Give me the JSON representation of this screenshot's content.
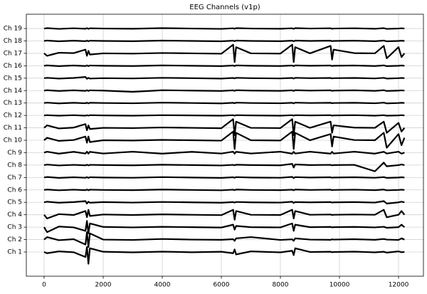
{
  "chart_data": {
    "type": "line",
    "title": "EEG Channels (v1p)",
    "color": "#000000",
    "grid": true,
    "xlim": [
      -602,
      12843
    ],
    "ylim": [
      -0.95,
      20.15
    ],
    "xticks": [
      0,
      2000,
      4000,
      6000,
      8000,
      10000,
      12000
    ],
    "yticks": [
      {
        "value": 1,
        "label": "Ch 1"
      },
      {
        "value": 2,
        "label": "Ch 2"
      },
      {
        "value": 3,
        "label": "Ch 3"
      },
      {
        "value": 4,
        "label": "Ch 4"
      },
      {
        "value": 5,
        "label": "Ch 5"
      },
      {
        "value": 6,
        "label": "Ch 6"
      },
      {
        "value": 7,
        "label": "Ch 7"
      },
      {
        "value": 8,
        "label": "Ch 8"
      },
      {
        "value": 9,
        "label": "Ch 9"
      },
      {
        "value": 10,
        "label": "Ch 10"
      },
      {
        "value": 11,
        "label": "Ch 11"
      },
      {
        "value": 12,
        "label": "Ch 12"
      },
      {
        "value": 13,
        "label": "Ch 13"
      },
      {
        "value": 14,
        "label": "Ch 14"
      },
      {
        "value": 15,
        "label": "Ch 15"
      },
      {
        "value": 16,
        "label": "Ch 16"
      },
      {
        "value": 17,
        "label": "Ch 17"
      },
      {
        "value": 18,
        "label": "Ch 18"
      },
      {
        "value": 19,
        "label": "Ch 19"
      }
    ],
    "x": [
      0,
      100,
      500,
      1000,
      1400,
      1450,
      1500,
      1550,
      2000,
      3000,
      4000,
      5000,
      6000,
      6400,
      6450,
      6500,
      7000,
      8000,
      8400,
      8450,
      8500,
      9000,
      9700,
      9750,
      9800,
      10500,
      11200,
      11500,
      11600,
      12000,
      12100,
      12200
    ],
    "series": [
      {
        "values": [
          1.0,
          0.9,
          1.05,
          0.98,
          0.6,
          1.4,
          0.05,
          1.3,
          1.02,
          0.97,
          1.03,
          0.98,
          1.02,
          0.9,
          1.2,
          0.8,
          1.05,
          0.97,
          1.1,
          0.75,
          1.3,
          1.0,
          1.02,
          0.98,
          1.0,
          1.03,
          0.97,
          1.02,
          0.95,
          1.05,
          0.98,
          1.0
        ]
      },
      {
        "values": [
          2.0,
          2.2,
          1.95,
          2.03,
          1.6,
          2.6,
          1.4,
          2.5,
          2.0,
          1.97,
          2.05,
          2.0,
          1.98,
          2.03,
          1.9,
          2.1,
          2.2,
          1.97,
          2.02,
          1.9,
          2.1,
          2.0,
          1.98,
          2.02,
          2.0,
          2.03,
          1.98,
          2.05,
          2.0,
          1.97,
          2.1,
          2.0
        ]
      },
      {
        "values": [
          3.0,
          2.6,
          3.05,
          2.98,
          2.7,
          3.5,
          2.5,
          3.3,
          3.02,
          2.98,
          3.03,
          3.0,
          2.97,
          3.2,
          2.8,
          3.1,
          3.0,
          2.98,
          3.3,
          2.7,
          3.2,
          3.0,
          3.02,
          2.98,
          3.0,
          3.02,
          2.98,
          3.03,
          2.95,
          3.0,
          3.2,
          3.0
        ]
      },
      {
        "values": [
          4.0,
          3.7,
          4.05,
          3.98,
          4.3,
          3.8,
          4.4,
          3.9,
          4.02,
          3.98,
          4.03,
          4.0,
          3.97,
          4.4,
          3.6,
          4.3,
          4.0,
          3.98,
          4.4,
          3.7,
          4.3,
          4.0,
          4.02,
          3.98,
          4.0,
          4.02,
          4.0,
          4.4,
          3.8,
          4.0,
          4.3,
          4.0
        ]
      },
      {
        "values": [
          5.0,
          5.05,
          4.97,
          5.02,
          5.1,
          4.9,
          5.05,
          4.97,
          5.02,
          4.98,
          5.03,
          5.0,
          4.97,
          5.02,
          4.98,
          5.03,
          5.0,
          4.98,
          5.05,
          4.95,
          5.02,
          5.0,
          5.02,
          4.98,
          5.0,
          5.02,
          4.98,
          5.1,
          4.9,
          5.0,
          5.05,
          5.0
        ]
      },
      {
        "values": [
          6.0,
          6.03,
          5.97,
          6.02,
          5.98,
          6.03,
          5.97,
          6.02,
          6.0,
          5.98,
          6.03,
          6.0,
          5.97,
          6.02,
          5.98,
          6.03,
          6.0,
          5.98,
          6.02,
          5.97,
          6.03,
          6.0,
          6.02,
          5.98,
          6.0,
          6.02,
          5.98,
          6.03,
          5.97,
          6.0,
          6.02,
          6.0
        ]
      },
      {
        "values": [
          7.0,
          7.04,
          6.97,
          7.02,
          6.98,
          7.03,
          6.97,
          7.02,
          7.0,
          6.98,
          7.03,
          7.0,
          6.97,
          7.02,
          6.98,
          7.03,
          7.0,
          6.98,
          7.05,
          6.95,
          7.03,
          7.0,
          7.02,
          6.98,
          7.0,
          7.02,
          6.98,
          7.03,
          6.97,
          7.0,
          7.02,
          7.0
        ]
      },
      {
        "values": [
          8.0,
          8.04,
          7.97,
          8.02,
          7.98,
          8.03,
          7.97,
          8.02,
          8.0,
          7.98,
          8.03,
          8.0,
          7.97,
          8.02,
          7.98,
          8.03,
          8.0,
          7.98,
          8.1,
          7.8,
          8.05,
          8.0,
          8.02,
          7.98,
          8.0,
          8.02,
          7.5,
          8.2,
          7.9,
          8.0,
          8.05,
          8.0
        ]
      },
      {
        "values": [
          9.0,
          9.08,
          8.92,
          9.07,
          8.93,
          9.08,
          8.92,
          9.07,
          8.93,
          9.08,
          8.92,
          9.07,
          8.93,
          9.08,
          8.92,
          9.07,
          8.93,
          9.08,
          8.92,
          9.07,
          8.93,
          9.08,
          8.92,
          9.07,
          8.93,
          9.08,
          8.92,
          9.07,
          8.93,
          9.08,
          8.92,
          9.0
        ]
      },
      {
        "values": [
          10.0,
          10.2,
          9.95,
          10.02,
          10.3,
          9.8,
          10.3,
          9.85,
          10.0,
          9.98,
          10.03,
          10.0,
          9.97,
          10.7,
          9.3,
          10.6,
          10.0,
          9.98,
          10.7,
          9.3,
          10.6,
          10.0,
          10.5,
          9.5,
          10.3,
          10.02,
          10.0,
          10.6,
          9.4,
          10.5,
          9.6,
          10.2
        ]
      },
      {
        "values": [
          11.0,
          11.2,
          10.95,
          11.02,
          11.3,
          10.8,
          11.2,
          10.9,
          11.0,
          10.98,
          11.03,
          11.0,
          10.97,
          11.7,
          10.4,
          11.5,
          11.0,
          10.98,
          11.7,
          10.4,
          11.5,
          11.0,
          11.5,
          10.6,
          11.2,
          11.02,
          11.0,
          11.5,
          10.6,
          11.4,
          10.7,
          11.0
        ]
      },
      {
        "values": [
          12.0,
          12.02,
          11.98,
          12.02,
          11.98,
          12.02,
          11.98,
          12.02,
          12.0,
          11.98,
          12.02,
          12.0,
          11.98,
          12.02,
          11.98,
          12.02,
          12.0,
          11.98,
          12.02,
          11.98,
          12.02,
          12.0,
          12.02,
          11.98,
          12.0,
          12.02,
          11.98,
          12.02,
          11.98,
          12.0,
          12.02,
          12.0
        ]
      },
      {
        "values": [
          13.0,
          13.03,
          12.97,
          13.02,
          12.98,
          13.03,
          12.97,
          13.02,
          13.0,
          12.98,
          13.03,
          13.0,
          12.97,
          13.02,
          12.98,
          13.03,
          13.0,
          12.98,
          13.02,
          12.97,
          13.03,
          13.0,
          13.02,
          12.98,
          13.0,
          13.02,
          12.98,
          13.03,
          12.97,
          13.0,
          13.02,
          13.0
        ]
      },
      {
        "values": [
          14.0,
          14.03,
          13.97,
          14.02,
          13.98,
          14.03,
          13.97,
          14.02,
          14.0,
          13.9,
          14.03,
          14.0,
          13.97,
          14.02,
          13.98,
          14.03,
          14.0,
          13.98,
          14.02,
          13.97,
          14.03,
          14.0,
          14.02,
          13.98,
          14.0,
          14.02,
          13.98,
          14.03,
          13.97,
          14.0,
          14.02,
          14.0
        ]
      },
      {
        "values": [
          15.0,
          15.03,
          14.97,
          15.02,
          15.1,
          14.95,
          15.03,
          14.97,
          15.0,
          14.98,
          15.03,
          15.0,
          14.97,
          15.02,
          14.98,
          15.03,
          15.0,
          14.98,
          15.02,
          14.97,
          15.03,
          15.0,
          15.02,
          14.98,
          15.0,
          15.02,
          14.98,
          15.03,
          14.97,
          15.0,
          15.02,
          15.0
        ]
      },
      {
        "values": [
          16.0,
          16.03,
          15.97,
          16.02,
          15.98,
          16.03,
          15.97,
          16.02,
          16.0,
          15.98,
          16.03,
          16.0,
          15.97,
          16.02,
          15.98,
          16.03,
          16.0,
          15.98,
          16.02,
          15.97,
          16.03,
          16.0,
          16.02,
          15.98,
          16.0,
          16.02,
          15.98,
          16.03,
          15.97,
          16.0,
          16.02,
          16.0
        ]
      },
      {
        "values": [
          17.0,
          16.8,
          17.05,
          17.02,
          17.3,
          16.8,
          17.2,
          16.9,
          17.0,
          16.98,
          17.03,
          17.0,
          16.97,
          17.7,
          16.3,
          17.5,
          17.0,
          16.98,
          17.7,
          16.3,
          17.5,
          17.0,
          17.6,
          16.5,
          17.3,
          17.02,
          17.0,
          17.6,
          16.6,
          17.5,
          16.7,
          17.0
        ]
      },
      {
        "values": [
          18.0,
          18.03,
          17.97,
          18.02,
          17.98,
          18.03,
          17.97,
          18.02,
          18.0,
          17.98,
          18.03,
          18.0,
          17.97,
          18.02,
          17.98,
          18.03,
          18.0,
          17.98,
          18.02,
          17.97,
          18.03,
          18.0,
          18.02,
          17.98,
          18.0,
          18.02,
          17.98,
          18.03,
          17.97,
          18.0,
          18.02,
          18.0
        ]
      },
      {
        "values": [
          19.0,
          19.03,
          18.97,
          19.02,
          18.98,
          19.03,
          18.97,
          19.02,
          19.0,
          18.98,
          19.03,
          19.0,
          18.97,
          19.02,
          18.98,
          19.03,
          19.0,
          18.98,
          19.02,
          18.97,
          19.03,
          19.0,
          19.02,
          18.98,
          19.0,
          19.02,
          18.98,
          19.03,
          18.97,
          19.0,
          19.02,
          19.0
        ]
      }
    ]
  }
}
